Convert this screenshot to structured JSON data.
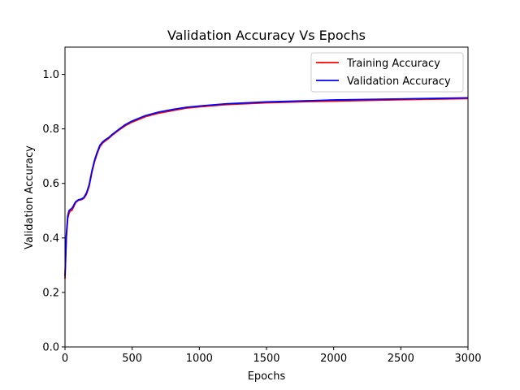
{
  "chart_data": {
    "type": "line",
    "title": "Validation Accuracy Vs Epochs",
    "xlabel": "Epochs",
    "ylabel": "Validation Accuracy",
    "xlim": [
      0,
      3000
    ],
    "ylim": [
      0.0,
      1.1
    ],
    "x_ticks": [
      0,
      500,
      1000,
      1500,
      2000,
      2500,
      3000
    ],
    "y_ticks": [
      0.0,
      0.2,
      0.4,
      0.6,
      0.8,
      1.0
    ],
    "x_tick_labels": [
      "0",
      "500",
      "1000",
      "1500",
      "2000",
      "2500",
      "3000"
    ],
    "y_tick_labels": [
      "0.0",
      "0.2",
      "0.4",
      "0.6",
      "0.8",
      "1.0"
    ],
    "grid": false,
    "legend_position": "top-right",
    "series": [
      {
        "name": "Training Accuracy",
        "color": "#ff0000",
        "x": [
          0,
          10,
          20,
          30,
          40,
          50,
          60,
          70,
          80,
          100,
          120,
          140,
          160,
          180,
          200,
          220,
          240,
          260,
          280,
          300,
          325,
          350,
          400,
          450,
          500,
          600,
          700,
          800,
          900,
          1000,
          1200,
          1500,
          1800,
          2000,
          2500,
          3000
        ],
        "y": [
          0.25,
          0.4,
          0.47,
          0.49,
          0.5,
          0.5,
          0.51,
          0.52,
          0.53,
          0.538,
          0.54,
          0.545,
          0.56,
          0.59,
          0.64,
          0.68,
          0.71,
          0.735,
          0.748,
          0.756,
          0.765,
          0.776,
          0.795,
          0.812,
          0.825,
          0.845,
          0.858,
          0.867,
          0.876,
          0.881,
          0.889,
          0.896,
          0.9,
          0.902,
          0.907,
          0.911
        ]
      },
      {
        "name": "Validation Accuracy",
        "color": "#0000ff",
        "x": [
          0,
          10,
          20,
          30,
          40,
          50,
          60,
          70,
          80,
          100,
          120,
          140,
          160,
          180,
          200,
          220,
          240,
          260,
          280,
          300,
          325,
          350,
          400,
          450,
          500,
          600,
          700,
          800,
          900,
          1000,
          1200,
          1500,
          1800,
          2000,
          2500,
          3000
        ],
        "y": [
          0.26,
          0.41,
          0.48,
          0.5,
          0.505,
          0.508,
          0.515,
          0.525,
          0.533,
          0.54,
          0.542,
          0.548,
          0.565,
          0.595,
          0.645,
          0.685,
          0.715,
          0.74,
          0.752,
          0.76,
          0.768,
          0.779,
          0.798,
          0.816,
          0.829,
          0.849,
          0.862,
          0.871,
          0.879,
          0.884,
          0.892,
          0.899,
          0.903,
          0.906,
          0.91,
          0.914
        ]
      }
    ]
  }
}
